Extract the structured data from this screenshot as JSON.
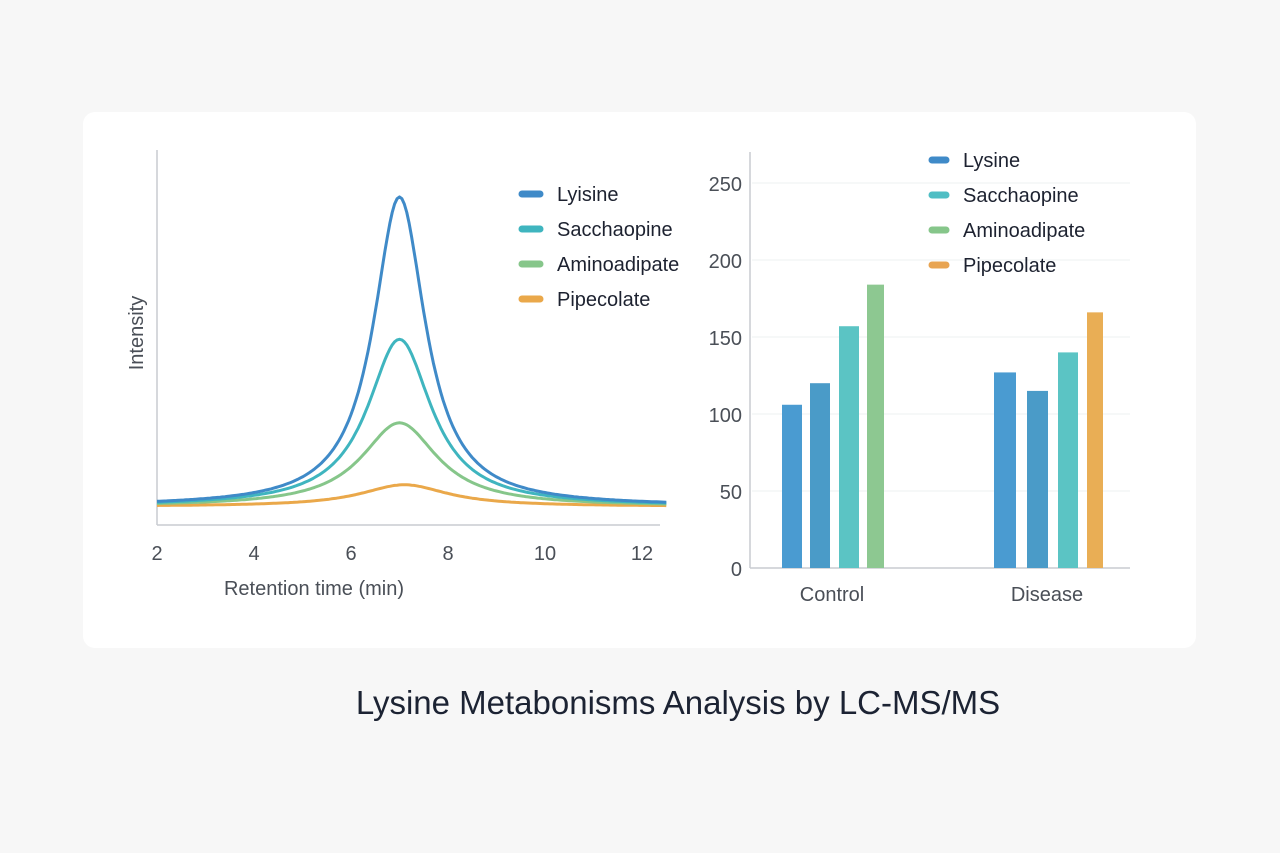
{
  "title": "Lysine Metabonisms Analysis by LC-MS/MS",
  "chart_data": [
    {
      "type": "line",
      "xlabel": "Retention time (min)",
      "ylabel": "Intensity",
      "xlim": [
        2,
        12.5
      ],
      "ylim": [
        0,
        115
      ],
      "xticks": [
        "2",
        "4",
        "6",
        "8",
        "10",
        "12"
      ],
      "grid": false,
      "legend_position": "top-right",
      "peak_shape": "lorentzian",
      "baseline": 6,
      "series": [
        {
          "name": "Lyisine",
          "color": "#3f8ac8",
          "center": 7.0,
          "height": 100,
          "hwhm": 0.65
        },
        {
          "name": "Sacchaopine",
          "color": "#3fb5bf",
          "center": 7.0,
          "height": 54,
          "hwhm": 0.8
        },
        {
          "name": "Aminoadipate",
          "color": "#86c68a",
          "center": 7.0,
          "height": 27,
          "hwhm": 0.95
        },
        {
          "name": "Pipecolate",
          "color": "#eaa84a",
          "center": 7.1,
          "height": 7,
          "hwhm": 1.1
        }
      ]
    },
    {
      "type": "bar",
      "categories": [
        "Control",
        "Disease"
      ],
      "ylim": [
        0,
        270
      ],
      "yticks": [
        "0",
        "50",
        "100",
        "150",
        "200",
        "250"
      ],
      "grid": true,
      "legend_position": "top-right",
      "legend": [
        {
          "name": "Lysine",
          "color": "#3f8ac8"
        },
        {
          "name": "Sacchaopine",
          "color": "#4fbec4"
        },
        {
          "name": "Aminoadipate",
          "color": "#86c68a"
        },
        {
          "name": "Pipecolate",
          "color": "#e8a451"
        }
      ],
      "bars": [
        {
          "category": "Control",
          "values": [
            106,
            120,
            157,
            184
          ],
          "colors": [
            "#4a9bd1",
            "#4a9bc8",
            "#5bc4c4",
            "#8dc891"
          ]
        },
        {
          "category": "Disease",
          "values": [
            127,
            115,
            140,
            166
          ],
          "colors": [
            "#4a9bd1",
            "#4a9bc8",
            "#5bc4c4",
            "#e9ae55"
          ]
        }
      ]
    }
  ]
}
